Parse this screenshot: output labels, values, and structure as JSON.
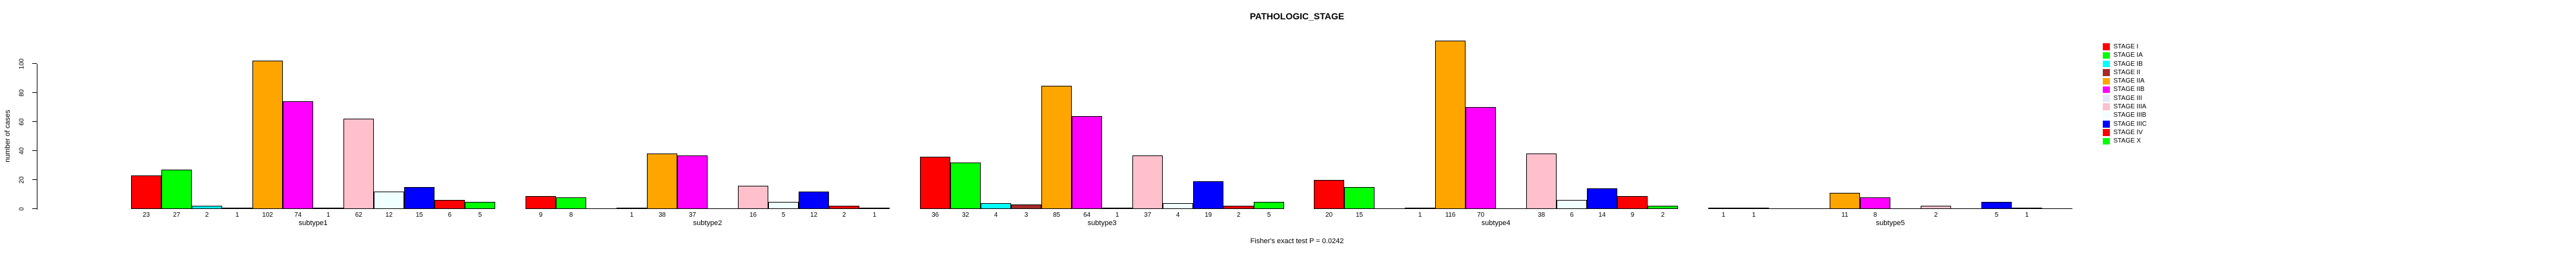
{
  "title": "PATHOLOGIC_STAGE",
  "annotation": "Fisher's exact test P = 0.0242",
  "y_axis": {
    "label": "number of cases",
    "ticks": [
      0,
      20,
      40,
      60,
      80,
      100
    ]
  },
  "legend": {
    "entries": [
      {
        "label": "STAGE I",
        "color": "#FF0000"
      },
      {
        "label": "STAGE IA",
        "color": "#00FF00"
      },
      {
        "label": "STAGE IB",
        "color": "#00FFFF"
      },
      {
        "label": "STAGE II",
        "color": "#A52A2A"
      },
      {
        "label": "STAGE IIA",
        "color": "#FFA500"
      },
      {
        "label": "STAGE IIB",
        "color": "#FF00FF"
      },
      {
        "label": "STAGE III",
        "color": "#E6E6FA"
      },
      {
        "label": "STAGE IIIA",
        "color": "#FFC0CB"
      },
      {
        "label": "STAGE IIIB",
        "color": "#F0FFFF"
      },
      {
        "label": "STAGE IIIC",
        "color": "#0000FF"
      },
      {
        "label": "STAGE IV",
        "color": "#FF0000"
      },
      {
        "label": "STAGE X",
        "color": "#00FF00"
      }
    ]
  },
  "chart_data": {
    "type": "bar",
    "title": "PATHOLOGIC_STAGE",
    "xlabel": "",
    "ylabel": "number of cases",
    "ylim": [
      0,
      116
    ],
    "y_ticks": [
      0,
      20,
      40,
      60,
      80,
      100
    ],
    "grid": false,
    "legend_position": "right-outside",
    "categories": [
      "STAGE I",
      "STAGE IA",
      "STAGE IB",
      "STAGE II",
      "STAGE IIA",
      "STAGE IIB",
      "STAGE III",
      "STAGE IIIA",
      "STAGE IIIB",
      "STAGE IIIC",
      "STAGE IV",
      "STAGE X"
    ],
    "category_colors": [
      "#FF0000",
      "#00FF00",
      "#00FFFF",
      "#A52A2A",
      "#FFA500",
      "#FF00FF",
      "#E6E6FA",
      "#FFC0CB",
      "#F0FFFF",
      "#0000FF",
      "#FF0000",
      "#00FF00"
    ],
    "groups": [
      "subtype1",
      "subtype2",
      "subtype3",
      "subtype4",
      "subtype5"
    ],
    "series": [
      {
        "name": "subtype1",
        "values": [
          23,
          27,
          2,
          1,
          102,
          74,
          1,
          62,
          12,
          15,
          6,
          5
        ]
      },
      {
        "name": "subtype2",
        "values": [
          9,
          8,
          0,
          1,
          38,
          37,
          0,
          16,
          5,
          12,
          2,
          1
        ]
      },
      {
        "name": "subtype3",
        "values": [
          36,
          32,
          4,
          3,
          85,
          64,
          1,
          37,
          4,
          19,
          2,
          5
        ]
      },
      {
        "name": "subtype4",
        "values": [
          20,
          15,
          0,
          1,
          116,
          70,
          0,
          38,
          6,
          14,
          9,
          2
        ]
      },
      {
        "name": "subtype5",
        "values": [
          1,
          1,
          0,
          0,
          11,
          8,
          0,
          2,
          0,
          5,
          1,
          0
        ]
      }
    ],
    "annotation": "Fisher's exact test P = 0.0242",
    "value_labels": "nonzero bar values printed below the baseline of each bar"
  }
}
